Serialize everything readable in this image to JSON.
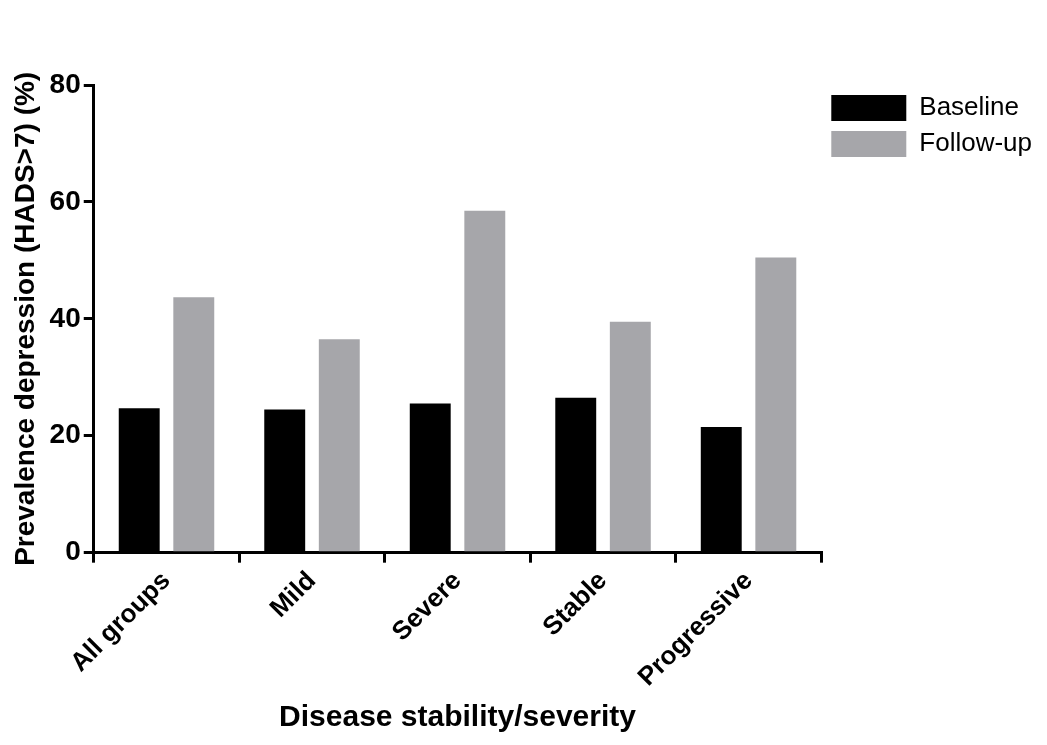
{
  "chart_data": {
    "type": "bar",
    "xlabel": "Disease stability/severity",
    "ylabel": "Prevalence depression (HADS>7) (%)",
    "categories": [
      "All groups",
      "Mild",
      "Severe",
      "Stable",
      "Progressive"
    ],
    "series": [
      {
        "name": "Baseline",
        "color": "#000000",
        "values": [
          24.7,
          24.5,
          25.5,
          26.5,
          21.5
        ]
      },
      {
        "name": "Follow-up",
        "color": "#a6a6aa",
        "values": [
          43.7,
          36.5,
          58.5,
          39.5,
          50.5
        ]
      }
    ],
    "ylim": [
      0,
      80
    ],
    "yticks": [
      0,
      20,
      40,
      60,
      80
    ],
    "grid": false,
    "legend": "top right"
  }
}
